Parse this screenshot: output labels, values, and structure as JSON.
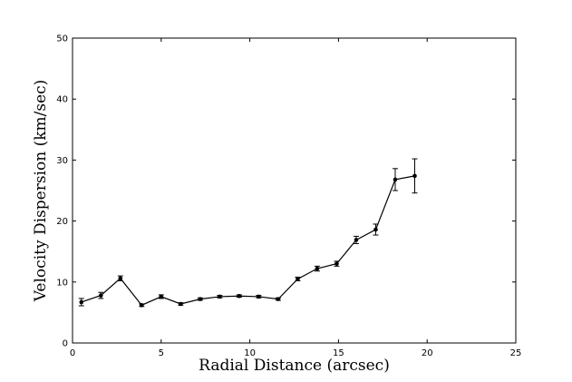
{
  "chart_data": {
    "type": "line",
    "title": "",
    "xlabel": "Radial Distance (arcsec)",
    "ylabel": "Velocity Dispersion (km/sec)",
    "xlim": [
      0,
      25
    ],
    "ylim": [
      0,
      50
    ],
    "xticks": [
      0,
      5,
      10,
      15,
      20,
      25
    ],
    "yticks": [
      0,
      10,
      20,
      30,
      40,
      50
    ],
    "grid": false,
    "legend": "none",
    "colors": {
      "line": "#000000",
      "marker": "#000000"
    },
    "marker": "circle",
    "error_bars": true,
    "series": [
      {
        "x": [
          0.5,
          1.6,
          2.7,
          3.9,
          5.0,
          6.1,
          7.2,
          8.3,
          9.4,
          10.5,
          11.6,
          12.7,
          13.8,
          14.9,
          16.0,
          17.1,
          18.2,
          19.3
        ],
        "y": [
          6.7,
          7.8,
          10.6,
          6.2,
          7.6,
          6.4,
          7.2,
          7.6,
          7.7,
          7.6,
          7.2,
          10.5,
          12.2,
          13.0,
          16.9,
          18.6,
          26.8,
          27.4
        ],
        "err": [
          0.6,
          0.5,
          0.4,
          0.2,
          0.3,
          0.2,
          0.2,
          0.2,
          0.2,
          0.2,
          0.2,
          0.3,
          0.4,
          0.4,
          0.6,
          0.9,
          1.8,
          2.8
        ]
      }
    ]
  }
}
